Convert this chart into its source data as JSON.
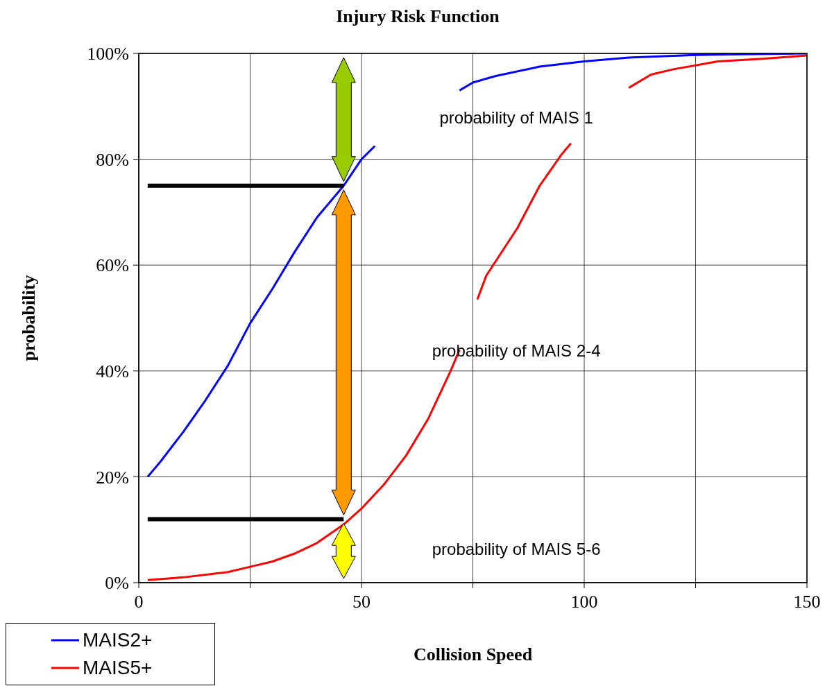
{
  "chart_data": {
    "type": "line",
    "title": "Injury Risk Function",
    "xlabel": "Collision Speed",
    "ylabel": "probability",
    "xlim": [
      0,
      150
    ],
    "xticks": [
      0,
      {
        "value": 25,
        "label": null
      },
      50,
      {
        "value": 75,
        "label": null
      },
      100,
      {
        "value": 125,
        "label": null
      },
      150
    ],
    "ylim": [
      0,
      100
    ],
    "yticks": [
      {
        "value": 0,
        "label": "0%"
      },
      {
        "value": 20,
        "label": "20%"
      },
      {
        "value": 40,
        "label": "40%"
      },
      {
        "value": 60,
        "label": "60%"
      },
      {
        "value": 80,
        "label": "80%"
      },
      {
        "value": 100,
        "label": "100%"
      }
    ],
    "grid": true,
    "legend": "bottom left",
    "annotations": [
      "probability of MAIS 1",
      "probability of MAIS 2-4",
      "probability of MAIS 5-6"
    ],
    "series": [
      {
        "name": "MAIS2+",
        "color": "#0000ff",
        "x": [
          2,
          5,
          10,
          15,
          20,
          25,
          30,
          35,
          40,
          46,
          50,
          53,
          60,
          72,
          75,
          80,
          90,
          100,
          110,
          125,
          150
        ],
        "values": [
          20,
          23,
          28.5,
          34.5,
          41,
          49,
          55.5,
          62.5,
          69,
          75,
          80,
          82.5,
          null,
          93,
          94.5,
          95.7,
          97.5,
          98.5,
          99.2,
          99.7,
          100
        ]
      },
      {
        "name": "MAIS5+",
        "color": "#ff0000",
        "x": [
          2,
          10,
          20,
          25,
          30,
          35,
          40,
          46,
          50,
          55,
          60,
          65,
          70,
          72,
          74,
          76,
          78,
          85,
          90,
          95,
          97,
          103,
          110,
          115,
          120,
          130,
          140,
          150
        ],
        "values": [
          0.5,
          1,
          2,
          3,
          4,
          5.5,
          7.5,
          11,
          14,
          18.5,
          24,
          31,
          40,
          44,
          null,
          53.5,
          58,
          67,
          75,
          81,
          83,
          null,
          93.5,
          96,
          97,
          98.5,
          99,
          99.6
        ]
      },
      {
        "color": "#000000",
        "x": [
          2,
          46
        ],
        "values": [
          75,
          75
        ]
      },
      {
        "color": "#000000",
        "x": [
          2,
          46
        ],
        "values": [
          12,
          12
        ]
      }
    ]
  }
}
